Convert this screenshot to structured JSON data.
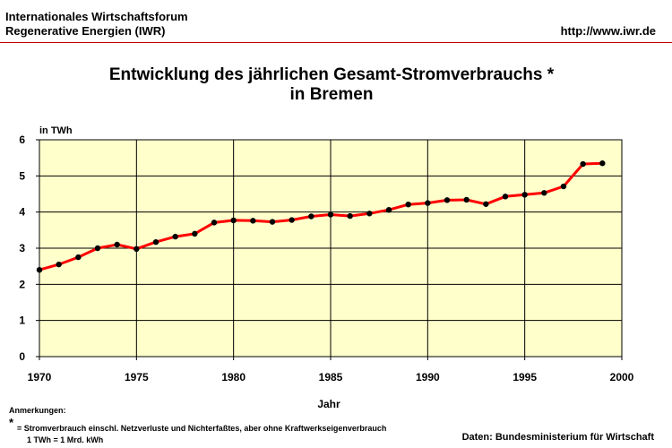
{
  "header": {
    "org_line1": "Internationales Wirtschaftsforum",
    "org_line2": "Regenerative Energien (IWR)",
    "url": "http://www.iwr.de"
  },
  "footer": {
    "notes_heading": "Anmerkungen:",
    "note_star": "*",
    "note_text": "= Stromverbrauch einschl. Netzverluste und Nichterfaßtes, aber ohne Kraftwerkseigenverbrauch",
    "note_unit": "1 TWh = 1 Mrd. kWh",
    "source": "Daten: Bundesministerium für Wirtschaft"
  },
  "colors": {
    "plot_background": "#ffffcc",
    "line": "#ff0000",
    "marker": "#000000",
    "header_rule": "#c00000"
  },
  "chart_data": {
    "type": "line",
    "title_line1": "Entwicklung des jährlichen Gesamt-Stromverbrauchs *",
    "title_line2": "in Bremen",
    "ylabel": "in TWh",
    "xlabel": "Jahr",
    "xlim": [
      1970,
      2000
    ],
    "ylim": [
      0,
      6
    ],
    "x_ticks": [
      "1970",
      "1975",
      "1980",
      "1985",
      "1990",
      "1995",
      "2000"
    ],
    "y_ticks": [
      "0",
      "1",
      "2",
      "3",
      "4",
      "5",
      "6"
    ],
    "grid": true,
    "legend": "none",
    "series": [
      {
        "x": [
          1970,
          1971,
          1972,
          1973,
          1974,
          1975,
          1976,
          1977,
          1978,
          1979,
          1980,
          1981,
          1982,
          1983,
          1984,
          1985,
          1986,
          1987,
          1988,
          1989,
          1990,
          1991,
          1992,
          1993,
          1994,
          1995,
          1996,
          1997,
          1998,
          1999
        ],
        "values": [
          2.4,
          2.55,
          2.75,
          3.0,
          3.1,
          2.98,
          3.17,
          3.32,
          3.4,
          3.71,
          3.77,
          3.76,
          3.73,
          3.78,
          3.88,
          3.93,
          3.89,
          3.96,
          4.06,
          4.21,
          4.25,
          4.33,
          4.34,
          4.22,
          4.43,
          4.48,
          4.53,
          4.71,
          5.33,
          5.35
        ]
      }
    ]
  }
}
